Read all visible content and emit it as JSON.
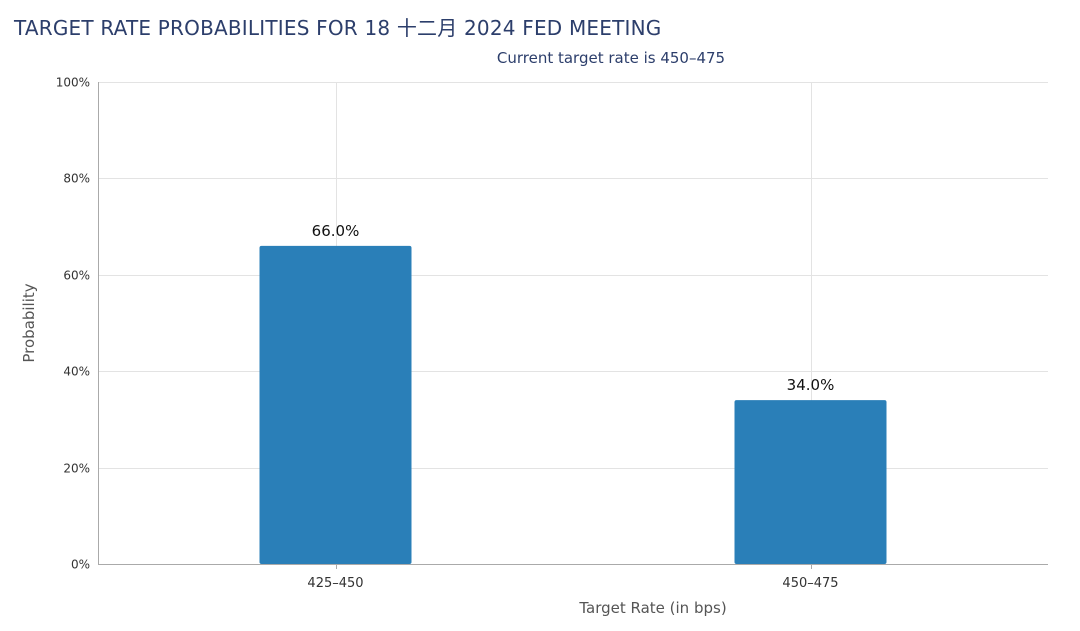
{
  "chart_data": {
    "type": "bar",
    "title": "TARGET RATE PROBABILITIES FOR 18 十二月 2024 FED MEETING",
    "subtitle": "Current target rate is 450–475",
    "xlabel": "Target Rate (in bps)",
    "ylabel": "Probability",
    "categories": [
      "425–450",
      "450–475"
    ],
    "values": [
      66.0,
      34.0
    ],
    "data_labels": [
      "66.0%",
      "34.0%"
    ],
    "ylim": [
      0,
      100
    ],
    "yticks": [
      0,
      20,
      40,
      60,
      80,
      100
    ],
    "ytick_labels": [
      "0%",
      "20%",
      "40%",
      "60%",
      "80%",
      "100%"
    ],
    "grid": true,
    "legend": "none",
    "bar_color": "#2a7fb8"
  }
}
